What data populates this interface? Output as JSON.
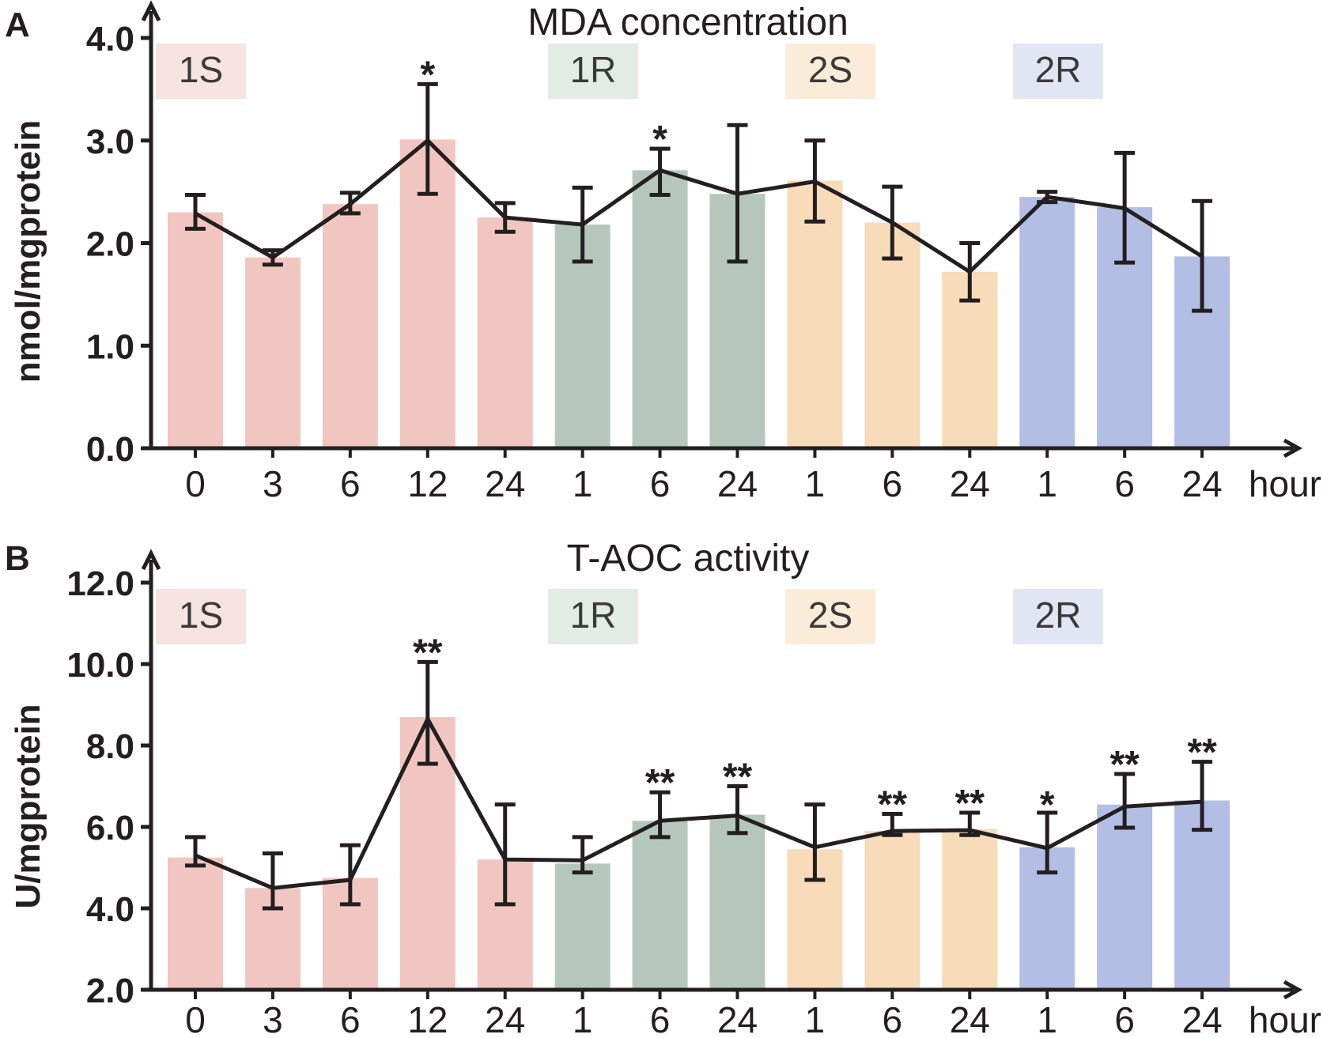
{
  "chart_data": [
    {
      "type": "bar",
      "panel": "A",
      "title": "MDA concentration",
      "ylabel": "nmol/mgprotein",
      "xlabel": "hour",
      "ylim": [
        0,
        4
      ],
      "yticks": [
        "0.0",
        "1.0",
        "2.0",
        "3.0",
        "4.0"
      ],
      "ytick_values": [
        0,
        1,
        2,
        3,
        4
      ],
      "categories": [
        "0",
        "3",
        "6",
        "12",
        "24",
        "1",
        "6",
        "24",
        "1",
        "6",
        "24",
        "1",
        "6",
        "24"
      ],
      "groups": [
        {
          "name": "1S",
          "start": 0,
          "end": 4,
          "color": "#f2c6c0",
          "label_bg": "#f7e3e0"
        },
        {
          "name": "1R",
          "start": 5,
          "end": 7,
          "color": "#b5c7bc",
          "label_bg": "#e3ebe5"
        },
        {
          "name": "2S",
          "start": 8,
          "end": 10,
          "color": "#f8dbb8",
          "label_bg": "#fbecd9"
        },
        {
          "name": "2R",
          "start": 11,
          "end": 13,
          "color": "#b3bee4",
          "label_bg": "#e2e6f4"
        }
      ],
      "series": [
        {
          "name": "MDA",
          "bar_values": [
            2.3,
            1.86,
            2.38,
            3.01,
            2.25,
            2.18,
            2.71,
            2.48,
            2.61,
            2.2,
            1.72,
            2.45,
            2.35,
            1.87
          ],
          "line_values": [
            2.29,
            1.86,
            2.38,
            3.0,
            2.25,
            2.18,
            2.71,
            2.48,
            2.6,
            2.2,
            1.72,
            2.45,
            2.34,
            1.87
          ],
          "err_low": [
            2.14,
            1.79,
            2.29,
            2.48,
            2.11,
            1.82,
            2.47,
            1.82,
            2.21,
            1.85,
            1.44,
            2.4,
            1.81,
            1.34
          ],
          "err_high": [
            2.47,
            1.93,
            2.49,
            3.55,
            2.39,
            2.54,
            2.92,
            3.15,
            3.0,
            2.55,
            2.0,
            2.5,
            2.88,
            2.41
          ]
        }
      ],
      "significance": [
        "",
        "",
        "",
        "*",
        "",
        "",
        "*",
        "",
        "",
        "",
        "",
        "",
        "",
        ""
      ]
    },
    {
      "type": "bar",
      "panel": "B",
      "title": "T-AOC activity",
      "ylabel": "U/mgprotein",
      "xlabel": "hour",
      "ylim": [
        2,
        12
      ],
      "yticks": [
        "2.0",
        "4.0",
        "6.0",
        "8.0",
        "10.0",
        "12.0"
      ],
      "ytick_values": [
        2,
        4,
        6,
        8,
        10,
        12
      ],
      "categories": [
        "0",
        "3",
        "6",
        "12",
        "24",
        "1",
        "6",
        "24",
        "1",
        "6",
        "24",
        "1",
        "6",
        "24"
      ],
      "groups": [
        {
          "name": "1S",
          "start": 0,
          "end": 4,
          "color": "#f2c6c0",
          "label_bg": "#f7e3e0"
        },
        {
          "name": "1R",
          "start": 5,
          "end": 7,
          "color": "#b5c7bc",
          "label_bg": "#e3ebe5"
        },
        {
          "name": "2S",
          "start": 8,
          "end": 10,
          "color": "#f8dbb8",
          "label_bg": "#fbecd9"
        },
        {
          "name": "2R",
          "start": 11,
          "end": 13,
          "color": "#b3bee4",
          "label_bg": "#e2e6f4"
        }
      ],
      "series": [
        {
          "name": "T-AOC",
          "bar_values": [
            5.25,
            4.5,
            4.75,
            8.7,
            5.2,
            5.1,
            6.15,
            6.3,
            5.45,
            5.9,
            5.95,
            5.5,
            6.55,
            6.65
          ],
          "line_values": [
            5.3,
            4.5,
            4.7,
            8.65,
            5.2,
            5.18,
            6.15,
            6.28,
            5.5,
            5.9,
            5.92,
            5.48,
            6.5,
            6.62
          ],
          "err_low": [
            5.05,
            4.0,
            4.1,
            7.55,
            4.1,
            4.88,
            5.75,
            5.85,
            4.7,
            5.8,
            5.8,
            4.88,
            5.98,
            5.93
          ],
          "err_high": [
            5.75,
            5.35,
            5.55,
            10.05,
            6.55,
            5.75,
            6.85,
            7.0,
            6.55,
            6.32,
            6.35,
            6.35,
            7.3,
            7.6
          ]
        }
      ],
      "significance": [
        "",
        "",
        "",
        "**",
        "",
        "",
        "**",
        "**",
        "",
        "**",
        "**",
        "*",
        "**",
        "**"
      ]
    }
  ]
}
